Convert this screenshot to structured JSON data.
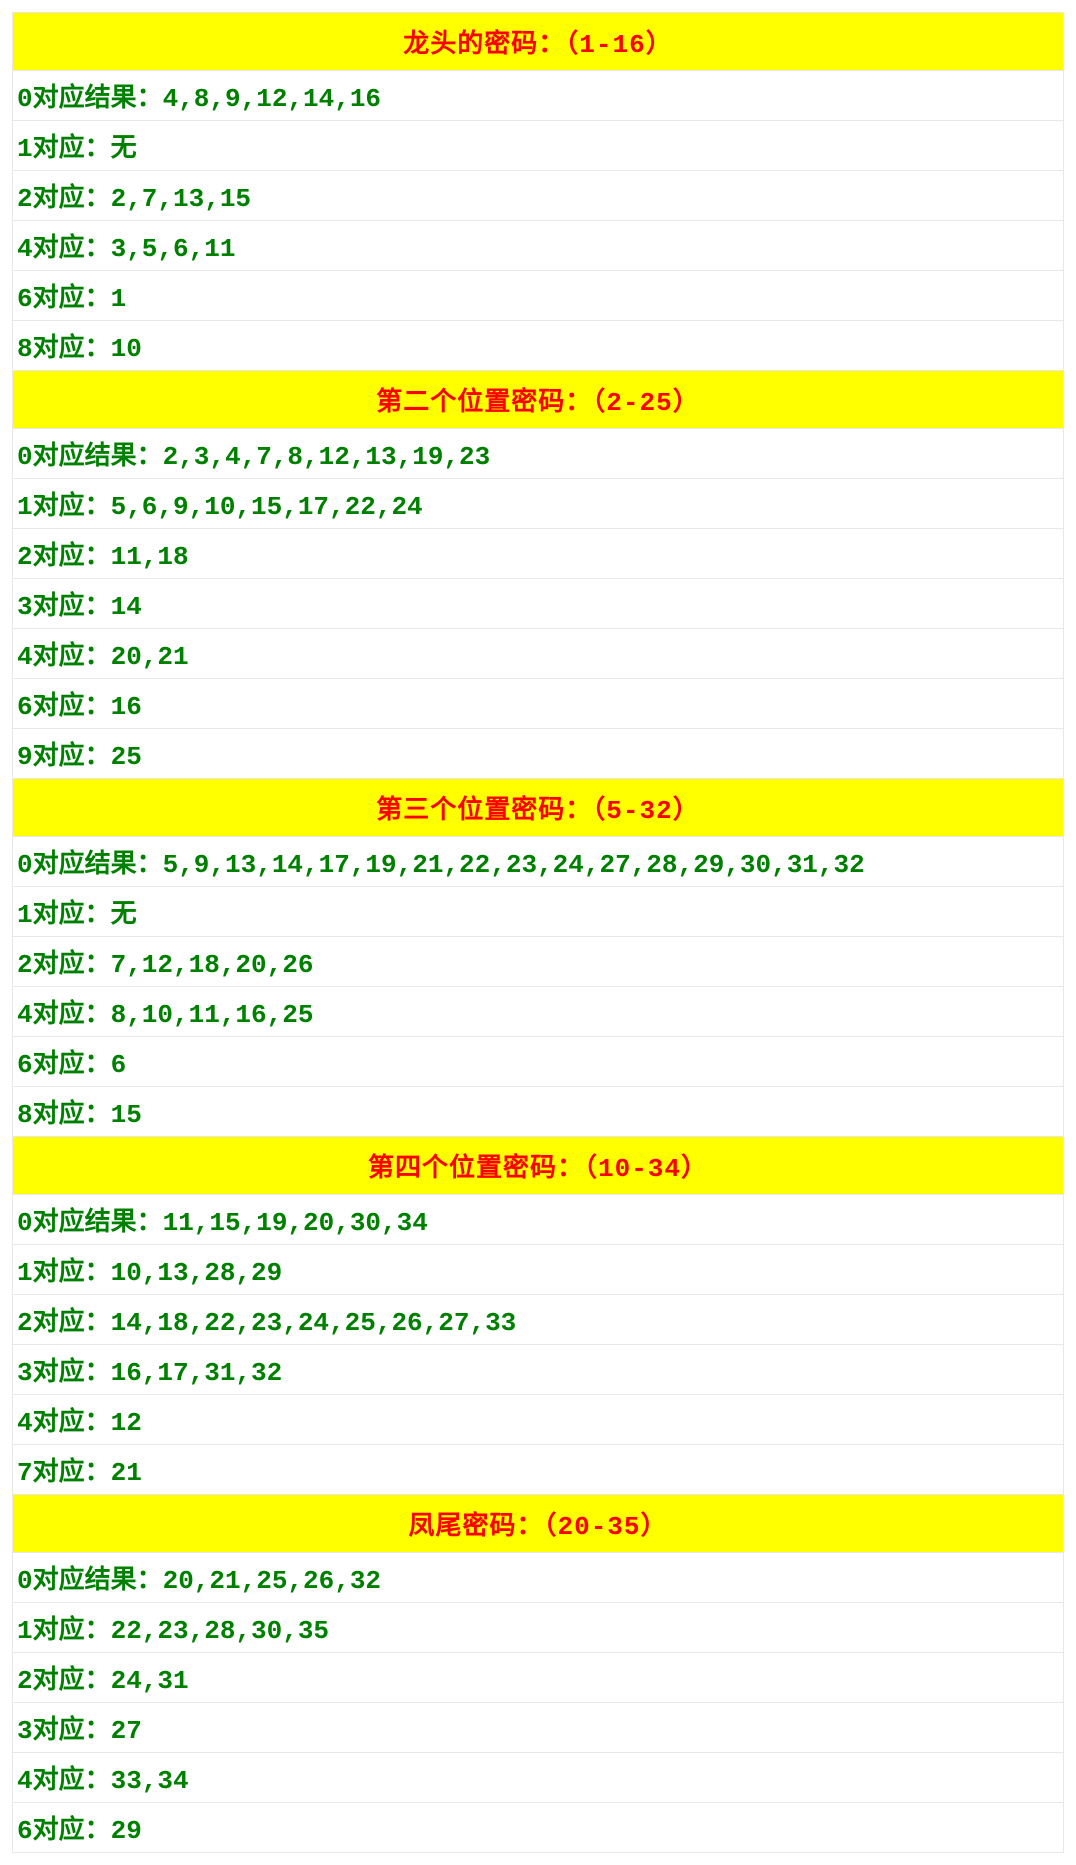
{
  "colors": {
    "header_bg": "#ffff00",
    "header_text": "#ff0000",
    "row_text": "#008000",
    "border": "#e8e8e8",
    "row_bg": "#ffffff"
  },
  "typography": {
    "header_fontsize": 26,
    "row_fontsize": 26,
    "font_family": "SimSun, monospace",
    "weight": "bold"
  },
  "sections": [
    {
      "title": "龙头的密码：（1-16）",
      "rows": [
        "0对应结果：4,8,9,12,14,16",
        "1对应：无",
        "2对应：2,7,13,15",
        "4对应：3,5,6,11",
        "6对应：1",
        "8对应：10"
      ]
    },
    {
      "title": "第二个位置密码：（2-25）",
      "rows": [
        "0对应结果：2,3,4,7,8,12,13,19,23",
        "1对应：5,6,9,10,15,17,22,24",
        "2对应：11,18",
        "3对应：14",
        "4对应：20,21",
        "6对应：16",
        "9对应：25"
      ]
    },
    {
      "title": "第三个位置密码：（5-32）",
      "rows": [
        "0对应结果：5,9,13,14,17,19,21,22,23,24,27,28,29,30,31,32",
        "1对应：无",
        "2对应：7,12,18,20,26",
        "4对应：8,10,11,16,25",
        "6对应：6",
        "8对应：15"
      ]
    },
    {
      "title": "第四个位置密码：（10-34）",
      "rows": [
        "0对应结果：11,15,19,20,30,34",
        "1对应：10,13,28,29",
        "2对应：14,18,22,23,24,25,26,27,33",
        "3对应：16,17,31,32",
        "4对应：12",
        "7对应：21"
      ]
    },
    {
      "title": "凤尾密码：（20-35）",
      "rows": [
        "0对应结果：20,21,25,26,32",
        "1对应：22,23,28,30,35",
        "2对应：24,31",
        "3对应：27",
        "4对应：33,34",
        "6对应：29"
      ]
    }
  ]
}
